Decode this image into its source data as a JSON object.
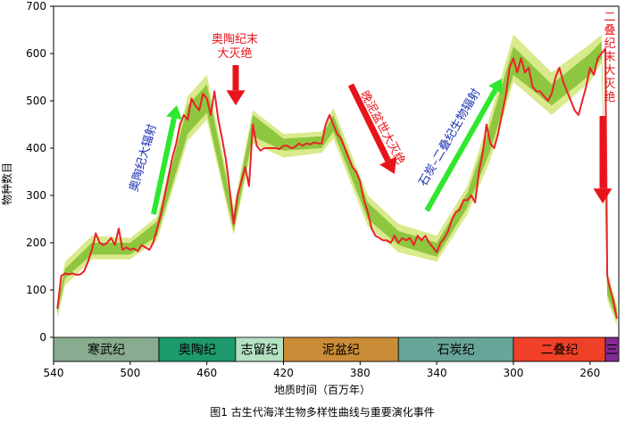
{
  "chart_data": {
    "type": "line",
    "title": "",
    "caption": "图1 古生代海洋生物多样性曲线与重要演化事件",
    "xlabel": "地质时间（百万年）",
    "ylabel": "物种数目",
    "x_reversed": true,
    "xlim": [
      540,
      245
    ],
    "ylim": [
      0,
      700
    ],
    "x_ticks": [
      540,
      500,
      460,
      420,
      380,
      340,
      300,
      260
    ],
    "y_ticks": [
      0,
      100,
      200,
      300,
      400,
      500,
      600,
      700
    ],
    "colors": {
      "line": "#e8232a",
      "band_inner": "#8fc63f",
      "band_outer": "#d9ea8c",
      "arrow_red": "#e8141b",
      "arrow_green": "#2ee82e",
      "text_red": "#e8141b",
      "text_blue": "#1a2fb0"
    },
    "series": [
      {
        "x": [
          538,
          537,
          536,
          534,
          532,
          530,
          528,
          526,
          524,
          522,
          520,
          518,
          516,
          514,
          512,
          510,
          508,
          506,
          504,
          502,
          500,
          498,
          496,
          494,
          492,
          490,
          488,
          486,
          484,
          482,
          480,
          478,
          476,
          474,
          472,
          470,
          468,
          466,
          464,
          462,
          460,
          458,
          456,
          454,
          452,
          450,
          448,
          446,
          444,
          442,
          440,
          438,
          436,
          434,
          432,
          430,
          428,
          426,
          424,
          422,
          420,
          418,
          416,
          414,
          412,
          410,
          408,
          406,
          404,
          402,
          400,
          398,
          396,
          394,
          392,
          390,
          388,
          386,
          384,
          382,
          380,
          378,
          376,
          374,
          372,
          370,
          368,
          366,
          364,
          362,
          360,
          358,
          356,
          354,
          352,
          350,
          348,
          346,
          344,
          342,
          340,
          338,
          336,
          334,
          332,
          330,
          328,
          326,
          324,
          322,
          320,
          318,
          316,
          314,
          312,
          310,
          308,
          306,
          304,
          302,
          300,
          298,
          296,
          294,
          292,
          290,
          288,
          286,
          284,
          282,
          280,
          278,
          276,
          274,
          272,
          270,
          268,
          266,
          264,
          262,
          260,
          258,
          256,
          254,
          253,
          252,
          251,
          250,
          249,
          248,
          247,
          246
        ],
        "y": [
          60,
          95,
          130,
          135,
          133,
          135,
          132,
          133,
          140,
          160,
          185,
          220,
          200,
          195,
          200,
          210,
          195,
          230,
          185,
          190,
          185,
          188,
          182,
          195,
          190,
          185,
          200,
          230,
          260,
          300,
          340,
          380,
          410,
          450,
          470,
          460,
          505,
          490,
          480,
          515,
          505,
          470,
          520,
          460,
          420,
          375,
          310,
          240,
          300,
          330,
          360,
          320,
          450,
          405,
          395,
          400,
          400,
          400,
          400,
          398,
          405,
          405,
          400,
          402,
          410,
          405,
          410,
          408,
          412,
          410,
          410,
          450,
          470,
          450,
          430,
          420,
          400,
          380,
          360,
          350,
          330,
          290,
          265,
          230,
          215,
          210,
          205,
          205,
          200,
          215,
          200,
          210,
          205,
          210,
          195,
          215,
          205,
          215,
          200,
          190,
          180,
          200,
          210,
          225,
          250,
          265,
          270,
          290,
          290,
          300,
          285,
          350,
          390,
          450,
          410,
          400,
          430,
          470,
          510,
          570,
          590,
          560,
          590,
          560,
          570,
          530,
          520,
          520,
          510,
          500,
          515,
          550,
          570,
          540,
          520,
          500,
          480,
          470,
          500,
          530,
          570,
          555,
          590,
          600,
          605,
          610,
          130,
          110,
          95,
          80,
          60,
          40
        ]
      }
    ],
    "band_inner": [
      {
        "x": 538,
        "lo": 50,
        "hi": 70
      },
      {
        "x": 534,
        "lo": 125,
        "hi": 145
      },
      {
        "x": 520,
        "lo": 175,
        "hi": 200
      },
      {
        "x": 500,
        "lo": 175,
        "hi": 200
      },
      {
        "x": 486,
        "lo": 215,
        "hi": 245
      },
      {
        "x": 470,
        "lo": 430,
        "hi": 490
      },
      {
        "x": 460,
        "lo": 475,
        "hi": 535
      },
      {
        "x": 446,
        "lo": 225,
        "hi": 260
      },
      {
        "x": 436,
        "lo": 425,
        "hi": 470
      },
      {
        "x": 420,
        "lo": 395,
        "hi": 420
      },
      {
        "x": 400,
        "lo": 400,
        "hi": 425
      },
      {
        "x": 394,
        "lo": 435,
        "hi": 470
      },
      {
        "x": 376,
        "lo": 250,
        "hi": 285
      },
      {
        "x": 360,
        "lo": 195,
        "hi": 225
      },
      {
        "x": 340,
        "lo": 170,
        "hi": 200
      },
      {
        "x": 324,
        "lo": 275,
        "hi": 305
      },
      {
        "x": 312,
        "lo": 395,
        "hi": 450
      },
      {
        "x": 300,
        "lo": 555,
        "hi": 615
      },
      {
        "x": 280,
        "lo": 490,
        "hi": 535
      },
      {
        "x": 260,
        "lo": 555,
        "hi": 600
      },
      {
        "x": 254,
        "lo": 590,
        "hi": 625
      },
      {
        "x": 251,
        "lo": 90,
        "hi": 130
      },
      {
        "x": 246,
        "lo": 35,
        "hi": 60
      }
    ],
    "band_outer": [
      {
        "x": 538,
        "lo": 40,
        "hi": 75
      },
      {
        "x": 534,
        "lo": 110,
        "hi": 160
      },
      {
        "x": 520,
        "lo": 165,
        "hi": 215
      },
      {
        "x": 500,
        "lo": 165,
        "hi": 210
      },
      {
        "x": 486,
        "lo": 205,
        "hi": 255
      },
      {
        "x": 470,
        "lo": 415,
        "hi": 510
      },
      {
        "x": 460,
        "lo": 460,
        "hi": 555
      },
      {
        "x": 446,
        "lo": 215,
        "hi": 275
      },
      {
        "x": 436,
        "lo": 410,
        "hi": 480
      },
      {
        "x": 420,
        "lo": 380,
        "hi": 430
      },
      {
        "x": 400,
        "lo": 390,
        "hi": 435
      },
      {
        "x": 394,
        "lo": 420,
        "hi": 485
      },
      {
        "x": 376,
        "lo": 235,
        "hi": 300
      },
      {
        "x": 360,
        "lo": 180,
        "hi": 240
      },
      {
        "x": 340,
        "lo": 160,
        "hi": 215
      },
      {
        "x": 324,
        "lo": 260,
        "hi": 320
      },
      {
        "x": 312,
        "lo": 375,
        "hi": 470
      },
      {
        "x": 300,
        "lo": 540,
        "hi": 640
      },
      {
        "x": 280,
        "lo": 470,
        "hi": 560
      },
      {
        "x": 260,
        "lo": 540,
        "hi": 620
      },
      {
        "x": 254,
        "lo": 580,
        "hi": 640
      },
      {
        "x": 251,
        "lo": 80,
        "hi": 140
      },
      {
        "x": 246,
        "lo": 25,
        "hi": 70
      }
    ],
    "periods": [
      {
        "label": "寒武纪",
        "start": 540,
        "end": 485,
        "color": "#89ab8f"
      },
      {
        "label": "奥陶纪",
        "start": 485,
        "end": 445,
        "color": "#1d9a6c"
      },
      {
        "label": "志留纪",
        "start": 445,
        "end": 420,
        "color": "#b3e1c2"
      },
      {
        "label": "泥盆纪",
        "start": 420,
        "end": 360,
        "color": "#cb8c37"
      },
      {
        "label": "石炭纪",
        "start": 360,
        "end": 300,
        "color": "#67a599"
      },
      {
        "label": "二叠纪",
        "start": 300,
        "end": 252,
        "color": "#f04028"
      },
      {
        "label": "三",
        "start": 252,
        "end": 243,
        "color": "#812b92"
      }
    ],
    "annotations": {
      "ordovician_radiation": "奥陶纪大辐射",
      "end_ordovician_1": "奥陶纪末",
      "end_ordovician_2": "大灭绝",
      "late_devonian": "晚泥盆世大灭绝",
      "carb_perm_radiation": "石炭–二叠纪生物辐射",
      "end_permian": "二叠纪末大灭绝"
    }
  }
}
